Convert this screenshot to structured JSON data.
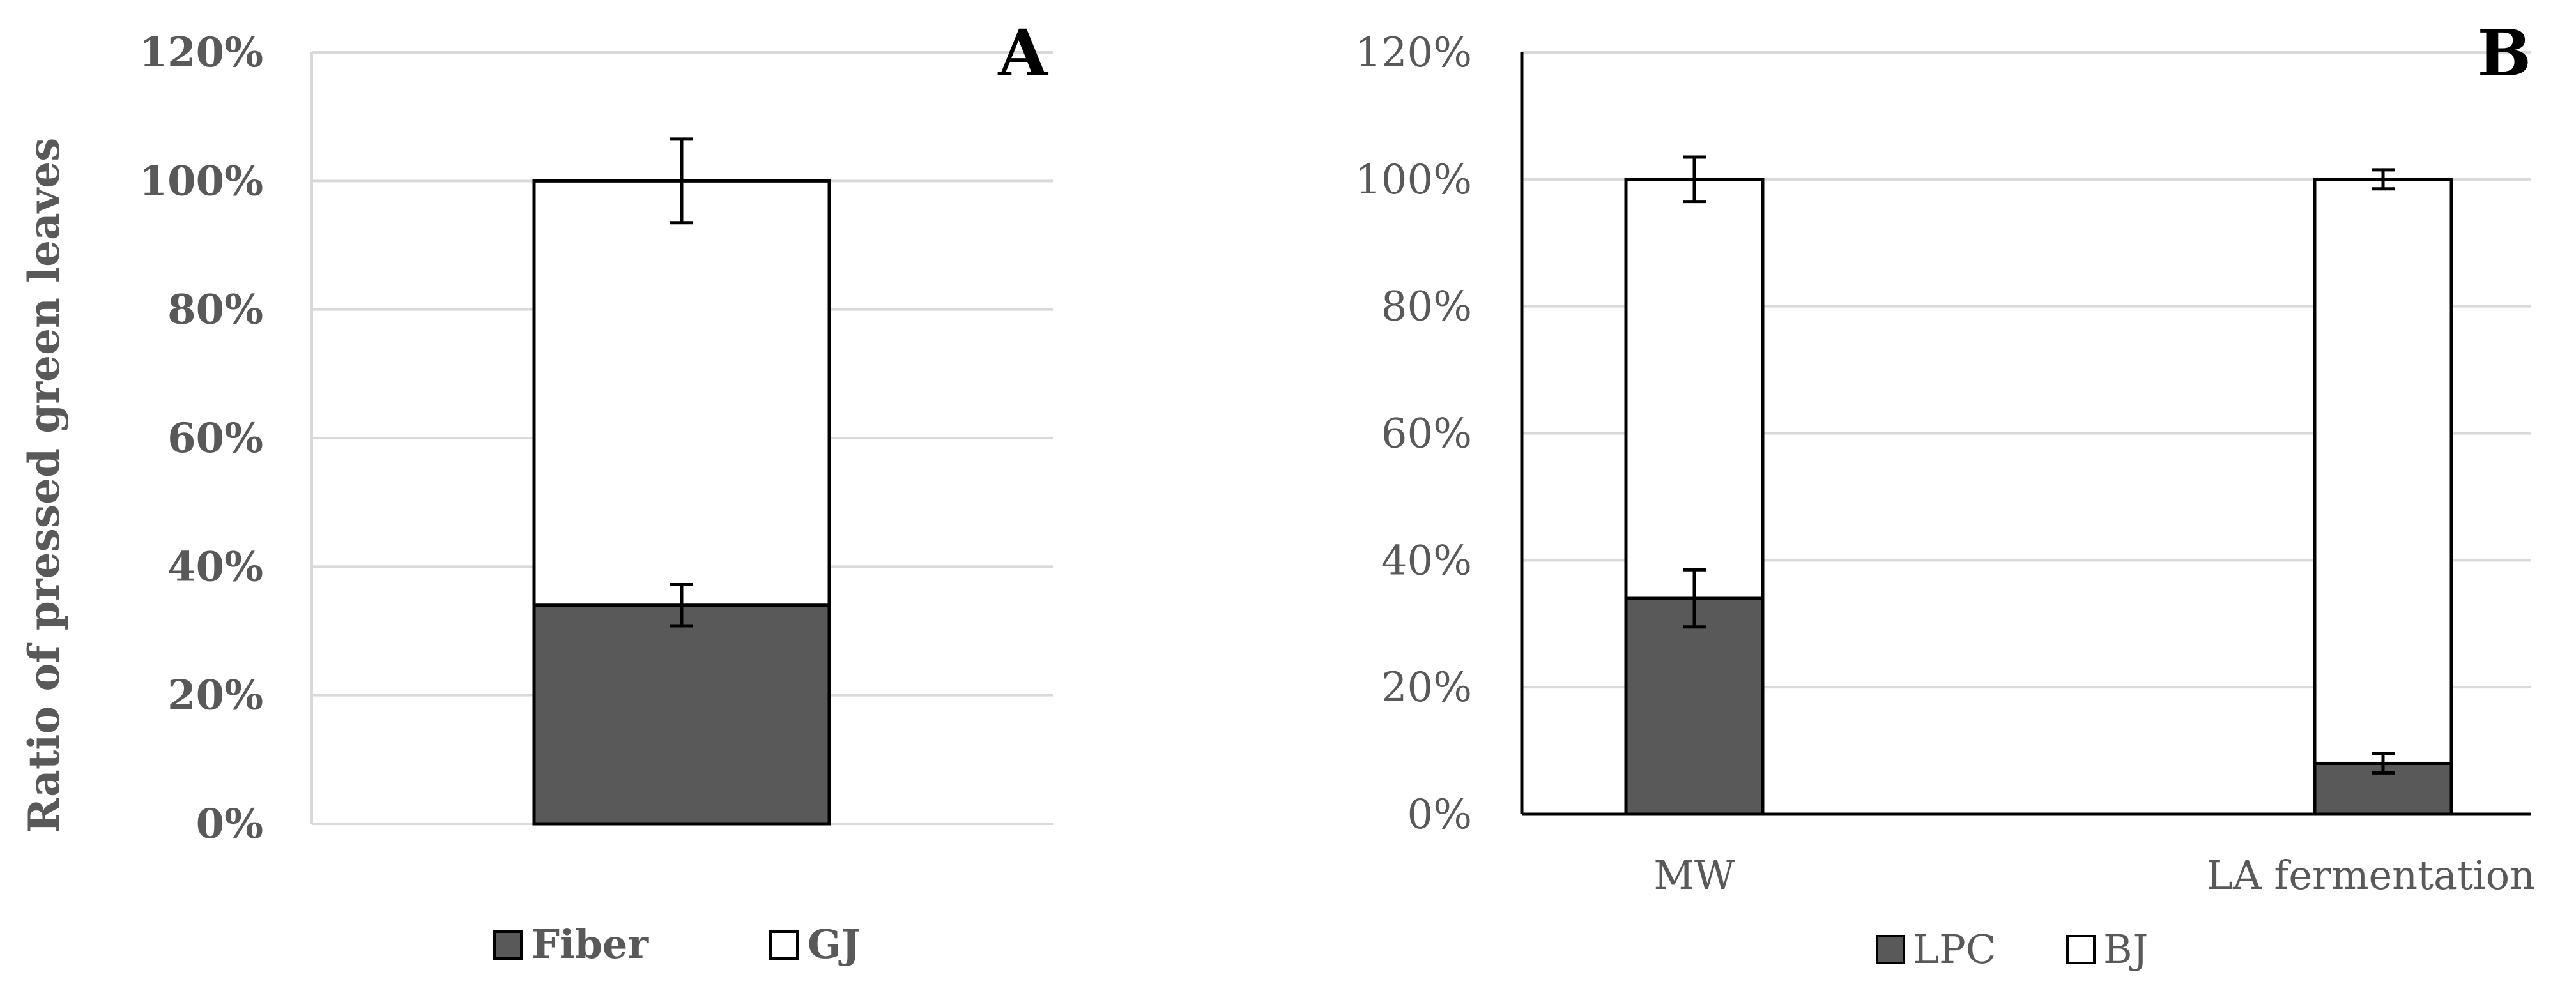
{
  "chart_data": [
    {
      "type": "bar",
      "stacked": true,
      "panel_label": "A",
      "title": "",
      "xlabel": "",
      "ylabel": "Ratio of pressed green leaves",
      "ylim": [
        0,
        120
      ],
      "yticks": [
        "0%",
        "20%",
        "40%",
        "60%",
        "80%",
        "100%",
        "120%"
      ],
      "categories": [
        ""
      ],
      "series": [
        {
          "name": "Fiber",
          "color": "#595959",
          "values": [
            34
          ],
          "error": [
            3.2
          ]
        },
        {
          "name": "GJ",
          "color": "#ffffff",
          "values": [
            66
          ],
          "error": [
            6.5
          ]
        }
      ],
      "legend_position": "bottom",
      "grid": true
    },
    {
      "type": "bar",
      "stacked": true,
      "panel_label": "B",
      "title": "",
      "xlabel": "",
      "ylabel": "",
      "ylim": [
        0,
        120
      ],
      "yticks": [
        "0%",
        "20%",
        "40%",
        "60%",
        "80%",
        "100%",
        "120%"
      ],
      "categories": [
        "MW",
        "LA fermentation"
      ],
      "series": [
        {
          "name": "LPC",
          "color": "#595959",
          "values": [
            34,
            8
          ],
          "error": [
            4.5,
            1.5
          ]
        },
        {
          "name": "BJ",
          "color": "#ffffff",
          "values": [
            66,
            92
          ],
          "error": [
            3.5,
            1.5
          ]
        }
      ],
      "legend_position": "bottom",
      "grid": true
    }
  ]
}
